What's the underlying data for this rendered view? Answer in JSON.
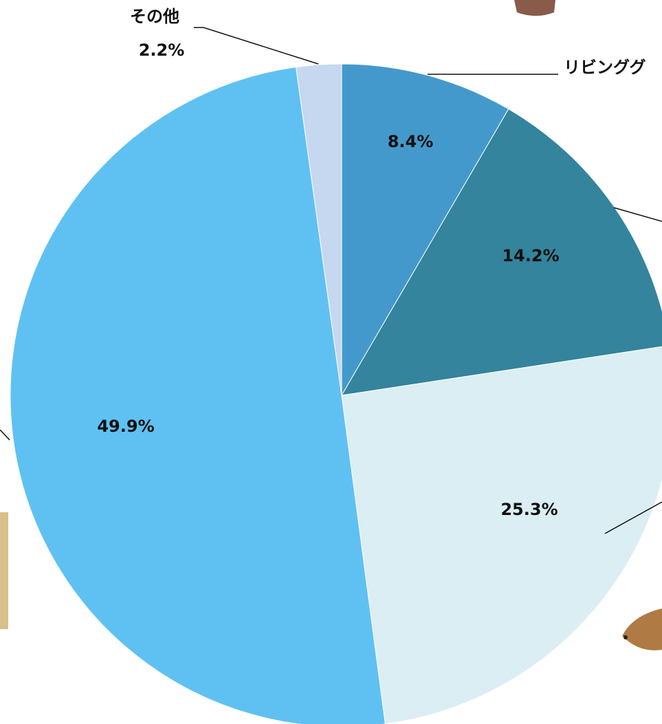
{
  "chart_data": {
    "type": "pie",
    "categories": [
      "リビンググ",
      null,
      null,
      null,
      "その他"
    ],
    "values": [
      8.4,
      14.2,
      25.3,
      49.9,
      2.2
    ],
    "value_labels": [
      "8.4%",
      "14.2%",
      "25.3%",
      "49.9%",
      "2.2%"
    ],
    "colors": [
      "#4499cc",
      "#33849c",
      "#daeef4",
      "#5fc1f2",
      "#c5d8ef"
    ]
  }
}
